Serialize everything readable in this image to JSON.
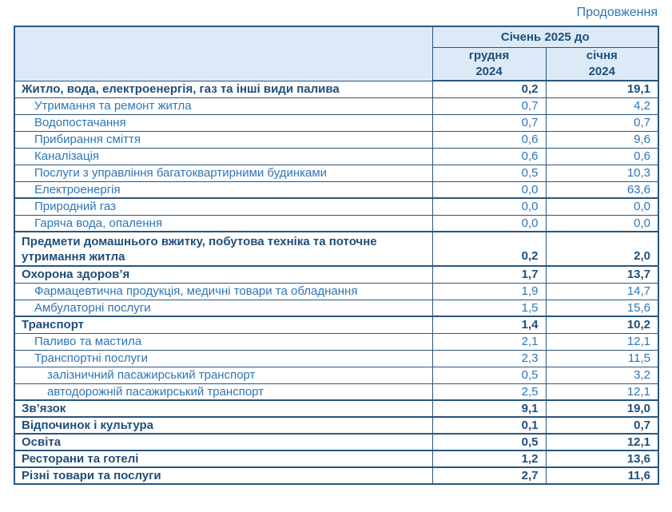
{
  "page": {
    "continuation_label": "Продовження"
  },
  "colors": {
    "text_dark": "#1F4E79",
    "text_regular": "#2E75B6",
    "border": "#29567F",
    "header_bg": "#DCEAF8"
  },
  "table": {
    "header": {
      "span_title": "Січень 2025 до",
      "col1": "грудня\n2024",
      "col2": "січня\n2024"
    },
    "rows": [
      {
        "label": "Житло, вода, електроенергія, газ та інші види палива",
        "col1": "0,2",
        "col2": "19,1",
        "bold": true,
        "indent": 0,
        "thick_top": false,
        "tall": false
      },
      {
        "label": "Утримання та ремонт житла",
        "col1": "0,7",
        "col2": "4,2",
        "bold": false,
        "indent": 1,
        "thick_top": false,
        "tall": false
      },
      {
        "label": "Водопостачання",
        "col1": "0,7",
        "col2": "0,7",
        "bold": false,
        "indent": 1,
        "thick_top": false,
        "tall": false
      },
      {
        "label": "Прибирання сміття",
        "col1": "0,6",
        "col2": "9,6",
        "bold": false,
        "indent": 1,
        "thick_top": false,
        "tall": false
      },
      {
        "label": "Каналізація",
        "col1": "0,6",
        "col2": "0,6",
        "bold": false,
        "indent": 1,
        "thick_top": false,
        "tall": false
      },
      {
        "label": "Послуги з управління багатоквартирними будинками",
        "col1": "0,5",
        "col2": "10,3",
        "bold": false,
        "indent": 1,
        "thick_top": false,
        "tall": false
      },
      {
        "label": "Електроенергія",
        "col1": "0,0",
        "col2": "63,6",
        "bold": false,
        "indent": 1,
        "thick_top": false,
        "tall": false
      },
      {
        "label": "Природний газ",
        "col1": "0,0",
        "col2": "0,0",
        "bold": false,
        "indent": 1,
        "thick_top": true,
        "tall": false
      },
      {
        "label": "Гаряча вода, опалення",
        "col1": "0,0",
        "col2": "0,0",
        "bold": false,
        "indent": 1,
        "thick_top": false,
        "tall": false
      },
      {
        "label": "Предмети домашнього вжитку, побутова техніка та поточне\nутримання житла",
        "col1": "0,2",
        "col2": "2,0",
        "bold": true,
        "indent": 0,
        "thick_top": true,
        "tall": true
      },
      {
        "label": "Охорона здоров’я",
        "col1": "1,7",
        "col2": "13,7",
        "bold": true,
        "indent": 0,
        "thick_top": true,
        "tall": false
      },
      {
        "label": "Фармацевтична продукція, медичні товари та обладнання",
        "col1": "1,9",
        "col2": "14,7",
        "bold": false,
        "indent": 1,
        "thick_top": false,
        "tall": false
      },
      {
        "label": "Амбулаторні послуги",
        "col1": "1,5",
        "col2": "15,6",
        "bold": false,
        "indent": 1,
        "thick_top": false,
        "tall": false
      },
      {
        "label": "Транспорт",
        "col1": "1,4",
        "col2": "10,2",
        "bold": true,
        "indent": 0,
        "thick_top": true,
        "tall": false
      },
      {
        "label": "Паливо та мастила",
        "col1": "2,1",
        "col2": "12,1",
        "bold": false,
        "indent": 1,
        "thick_top": false,
        "tall": false
      },
      {
        "label": "Транспортні послуги",
        "col1": "2,3",
        "col2": "11,5",
        "bold": false,
        "indent": 1,
        "thick_top": false,
        "tall": false
      },
      {
        "label": "залізничний пасажирський транспорт",
        "col1": "0,5",
        "col2": "3,2",
        "bold": false,
        "indent": 2,
        "thick_top": false,
        "tall": false
      },
      {
        "label": "автодорожній пасажирський транспорт",
        "col1": "2,5",
        "col2": "12,1",
        "bold": false,
        "indent": 2,
        "thick_top": false,
        "tall": false
      },
      {
        "label": "Зв’язок",
        "col1": "9,1",
        "col2": "19,0",
        "bold": true,
        "indent": 0,
        "thick_top": true,
        "tall": false
      },
      {
        "label": "Відпочинок і культура",
        "col1": "0,1",
        "col2": "0,7",
        "bold": true,
        "indent": 0,
        "thick_top": true,
        "tall": false
      },
      {
        "label": "Освіта",
        "col1": "0,5",
        "col2": "12,1",
        "bold": true,
        "indent": 0,
        "thick_top": true,
        "tall": false
      },
      {
        "label": "Ресторани та готелі",
        "col1": "1,2",
        "col2": "13,6",
        "bold": true,
        "indent": 0,
        "thick_top": true,
        "tall": false
      },
      {
        "label": "Різні товари та послуги",
        "col1": "2,7",
        "col2": "11,6",
        "bold": true,
        "indent": 0,
        "thick_top": true,
        "tall": false
      }
    ]
  }
}
